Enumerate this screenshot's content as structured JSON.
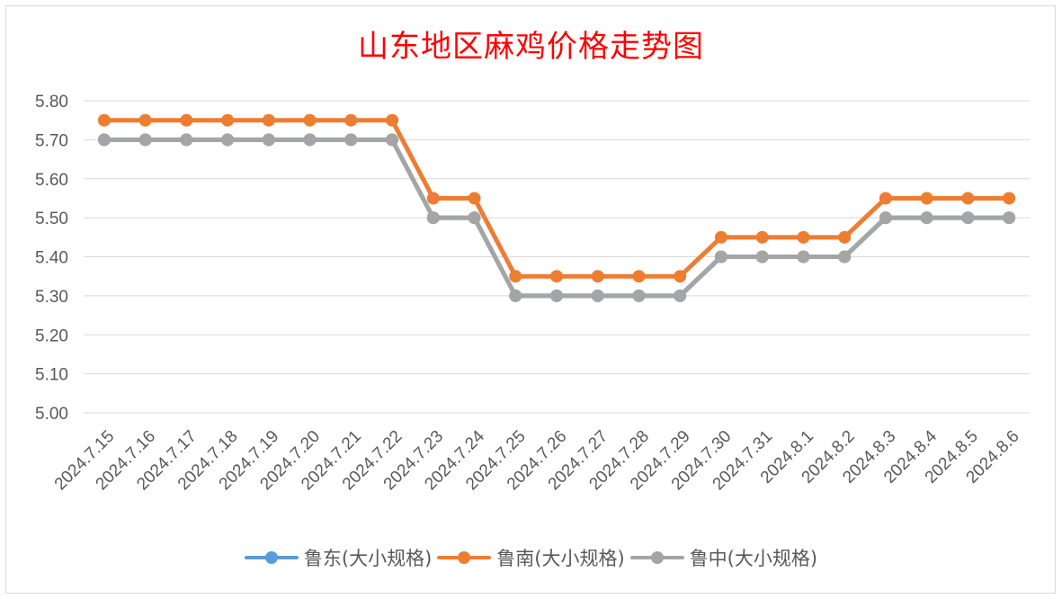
{
  "chart_data": {
    "type": "line",
    "title": "山东地区麻鸡价格走势图",
    "xlabel": "",
    "ylabel": "",
    "ylim": [
      5.0,
      5.8
    ],
    "yticks": [
      "5.00",
      "5.10",
      "5.20",
      "5.30",
      "5.40",
      "5.50",
      "5.60",
      "5.70",
      "5.80"
    ],
    "grid": true,
    "legend_position": "bottom",
    "categories": [
      "2024.7.15",
      "2024.7.16",
      "2024.7.17",
      "2024.7.18",
      "2024.7.19",
      "2024.7.20",
      "2024.7.21",
      "2024.7.22",
      "2024.7.23",
      "2024.7.24",
      "2024.7.25",
      "2024.7.26",
      "2024.7.27",
      "2024.7.28",
      "2024.7.29",
      "2024.7.30",
      "2024.7.31",
      "2024.8.1",
      "2024.8.2",
      "2024.8.3",
      "2024.8.4",
      "2024.8.5",
      "2024.8.6"
    ],
    "series": [
      {
        "name": "鲁东(大小规格)",
        "color": "#5b9bd5",
        "values": [
          5.7,
          5.7,
          5.7,
          5.7,
          5.7,
          5.7,
          5.7,
          5.7,
          5.5,
          5.5,
          5.3,
          5.3,
          5.3,
          5.3,
          5.3,
          5.4,
          5.4,
          5.4,
          5.4,
          5.5,
          5.5,
          5.5,
          5.5
        ]
      },
      {
        "name": "鲁南(大小规格)",
        "color": "#ed7d31",
        "values": [
          5.75,
          5.75,
          5.75,
          5.75,
          5.75,
          5.75,
          5.75,
          5.75,
          5.55,
          5.55,
          5.35,
          5.35,
          5.35,
          5.35,
          5.35,
          5.45,
          5.45,
          5.45,
          5.45,
          5.55,
          5.55,
          5.55,
          5.55
        ]
      },
      {
        "name": "鲁中(大小规格)",
        "color": "#a5a5a5",
        "values": [
          5.7,
          5.7,
          5.7,
          5.7,
          5.7,
          5.7,
          5.7,
          5.7,
          5.5,
          5.5,
          5.3,
          5.3,
          5.3,
          5.3,
          5.3,
          5.4,
          5.4,
          5.4,
          5.4,
          5.5,
          5.5,
          5.5,
          5.5
        ]
      }
    ]
  }
}
